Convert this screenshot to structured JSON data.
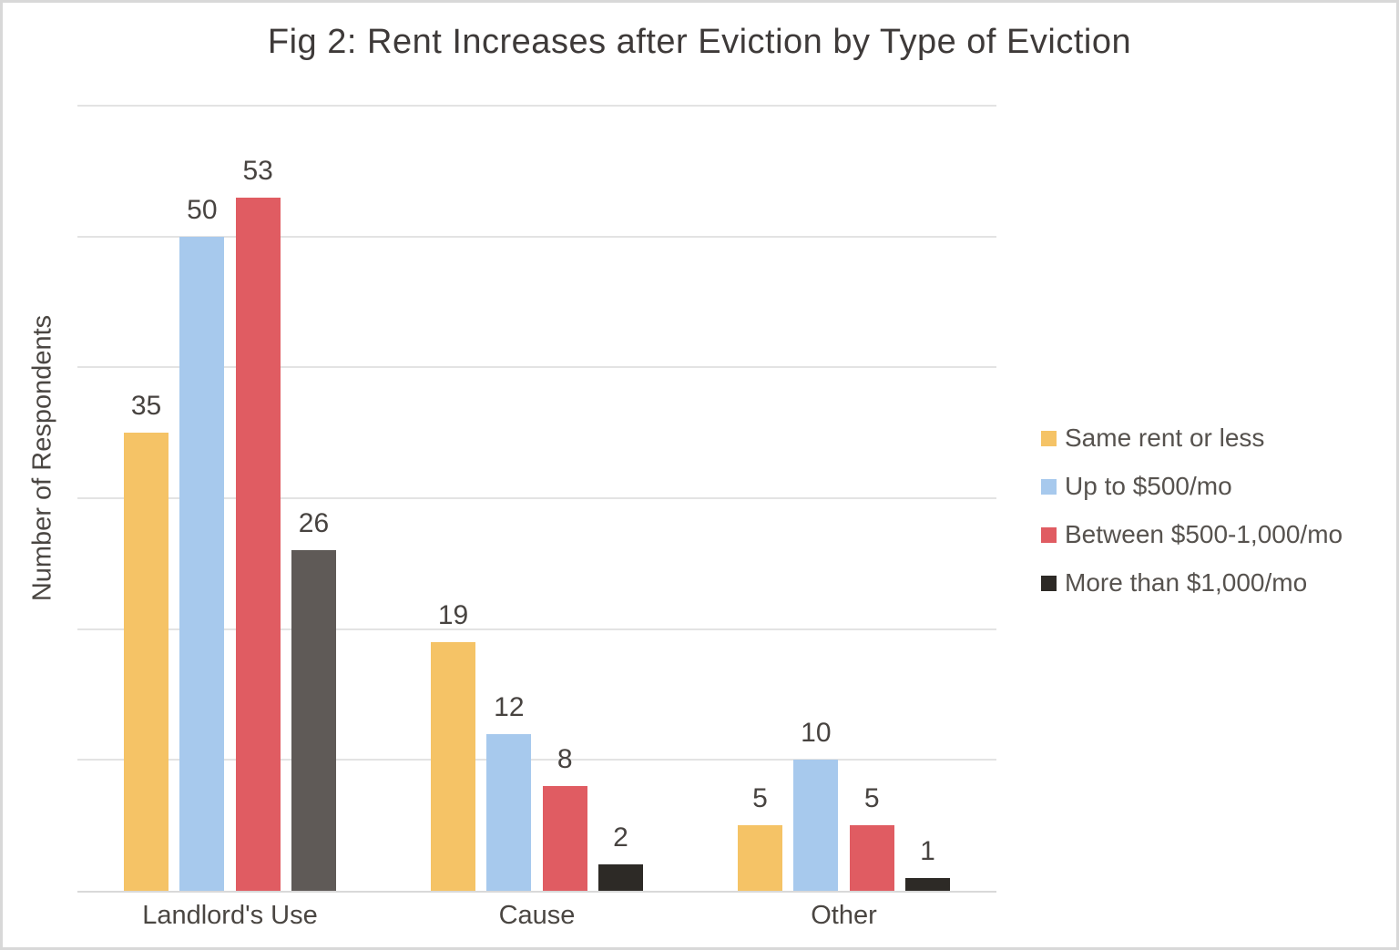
{
  "chart_data": {
    "type": "bar",
    "title": "Fig 2: Rent Increases after Eviction by Type of Eviction",
    "xlabel": "",
    "ylabel": "Number of Respondents",
    "categories": [
      "Landlord's Use",
      "Cause",
      "Other"
    ],
    "series": [
      {
        "name": "Same rent or less",
        "color": "#f5c366",
        "values": [
          35,
          19,
          5
        ]
      },
      {
        "name": "Up to $500/mo",
        "color": "#a7c9ed",
        "values": [
          50,
          12,
          10
        ]
      },
      {
        "name": "Between $500-1,000/mo",
        "color": "#e05c62",
        "values": [
          53,
          8,
          5
        ]
      },
      {
        "name": "More than $1,000/mo",
        "color": "#2d2a26",
        "values": [
          26,
          2,
          1
        ],
        "color_overrides": {
          "0": "#5f5a57"
        }
      }
    ],
    "ylim": [
      0,
      60
    ],
    "gridline_step": 10,
    "y_tick_labels_shown": false,
    "grid": true,
    "data_labels": true,
    "legend_position": "right"
  },
  "style_colors": {
    "gridline": "#e3e3e3",
    "axis_line": "#d9d9d9",
    "title_text": "#3e3a39",
    "label_text": "#474340",
    "border": "#d8d8d8"
  }
}
